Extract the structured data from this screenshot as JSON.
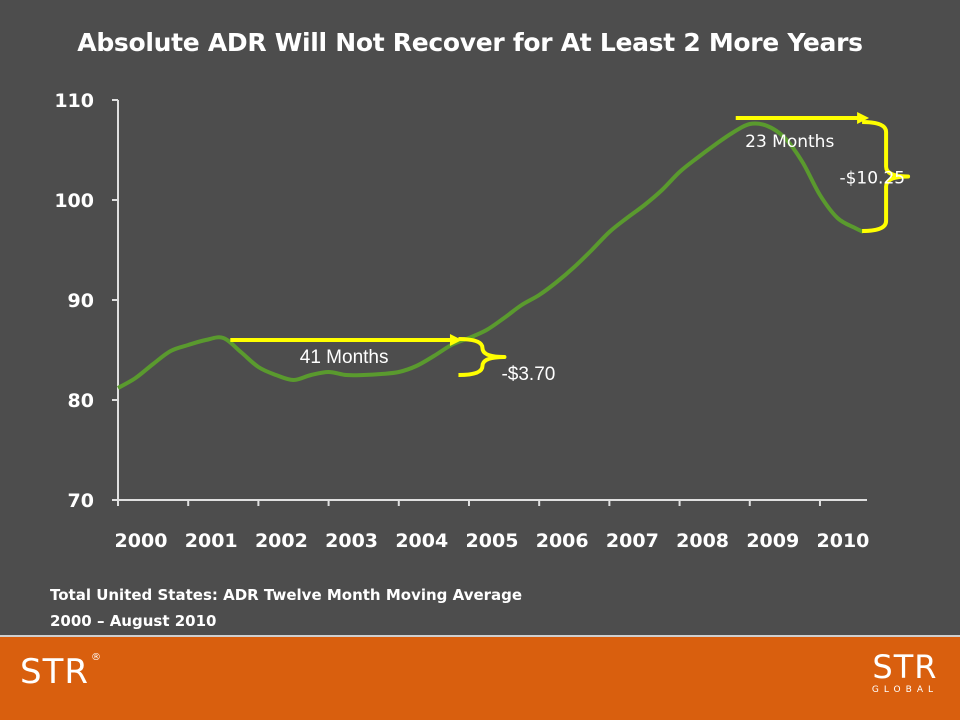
{
  "title": "Absolute ADR Will Not Recover for At Least 2 More Years",
  "caption_line1": "Total United States: ADR Twelve Month Moving Average",
  "caption_line2": "2000 – August  2010",
  "logo_left": "STR",
  "logo_left_mark": "®",
  "logo_right": "STR",
  "logo_right_sub": "GLOBAL",
  "colors": {
    "line": "#5a9a2e",
    "annotation": "#ffff00",
    "footer": "#d95f0e",
    "background": "#4d4d4d"
  },
  "chart_data": {
    "type": "line",
    "x_unit": "year (fractional)",
    "xlim": [
      2000,
      2010.67
    ],
    "ylim": [
      70,
      110
    ],
    "yticks": [
      "70",
      "80",
      "90",
      "100",
      "110"
    ],
    "xticks": [
      "2000",
      "2001",
      "2002",
      "2003",
      "2004",
      "2005",
      "2006",
      "2007",
      "2008",
      "2009",
      "2010"
    ],
    "grid": false,
    "series": [
      {
        "x": [
          2000.0,
          2000.25,
          2000.5,
          2000.75,
          2001.0,
          2001.25,
          2001.5,
          2001.75,
          2002.0,
          2002.25,
          2002.5,
          2002.75,
          2003.0,
          2003.25,
          2003.5,
          2003.75,
          2004.0,
          2004.25,
          2004.5,
          2004.75,
          2005.0,
          2005.25,
          2005.5,
          2005.75,
          2006.0,
          2006.25,
          2006.5,
          2006.75,
          2007.0,
          2007.25,
          2007.5,
          2007.75,
          2008.0,
          2008.25,
          2008.5,
          2008.75,
          2009.0,
          2009.25,
          2009.5,
          2009.75,
          2010.0,
          2010.25,
          2010.5,
          2010.62
        ],
        "y": [
          81.2,
          82.2,
          83.6,
          84.9,
          85.5,
          86.0,
          86.2,
          84.8,
          83.3,
          82.5,
          82.0,
          82.5,
          82.8,
          82.5,
          82.5,
          82.6,
          82.8,
          83.4,
          84.4,
          85.5,
          86.2,
          87.0,
          88.2,
          89.5,
          90.5,
          91.8,
          93.3,
          95.0,
          96.8,
          98.2,
          99.5,
          101.0,
          102.8,
          104.2,
          105.5,
          106.7,
          107.6,
          107.4,
          106.2,
          103.8,
          100.5,
          98.2,
          97.2,
          96.8
        ]
      }
    ],
    "annotations": [
      {
        "label": "41 Months",
        "x_start": 2001.6,
        "x_end": 2004.9,
        "y": 86.0
      },
      {
        "label": "-$3.70",
        "brace_x": 2004.85,
        "y_top": 86.1,
        "y_bottom": 82.5
      },
      {
        "label": "23 Months",
        "x_start": 2008.8,
        "x_end": 2010.7,
        "y": 108.2
      },
      {
        "label": "-$10.25",
        "brace_x": 2010.6,
        "y_top": 107.8,
        "y_bottom": 96.9
      }
    ]
  }
}
